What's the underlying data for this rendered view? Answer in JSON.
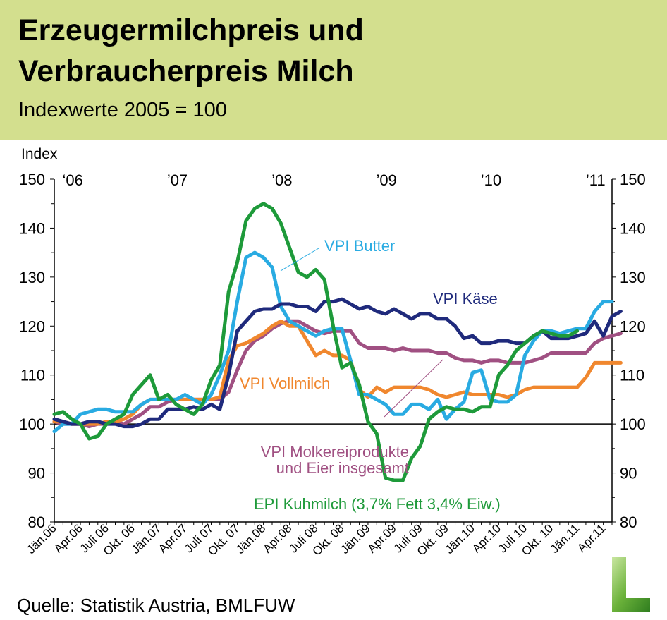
{
  "header": {
    "title_line1": "Erzeugermilchpreis und",
    "title_line2": "Verbraucherpreis Milch",
    "subtitle": "Indexwerte 2005 = 100"
  },
  "footer": {
    "source": "Quelle: Statistik Austria, BMLFUW"
  },
  "logo": {
    "icon": "letter-l-logo-icon",
    "color": "#5a9e2c"
  },
  "chart_data": {
    "type": "line",
    "ylabel": "Index",
    "ylim": [
      80,
      150
    ],
    "yticks": [
      80,
      90,
      100,
      110,
      120,
      130,
      140,
      150
    ],
    "reference_line": 100,
    "x_start": "2006-01",
    "x_end": "2011-05",
    "x_tick_labels": [
      "Jän.06",
      "Apr.06",
      "Juli 06",
      "Okt. 06",
      "Jän.07",
      "Apr.07",
      "Juli 07",
      "Okt. 07",
      "Jän.08",
      "Apr.08",
      "Juli 08",
      "Okt. 08",
      "Jän.09",
      "Apr.09",
      "Juli 09",
      "Okt. 09",
      "Jän.10",
      "Apr.10",
      "Juli 10",
      "Okt. 10",
      "Jän.11",
      "Apr.11"
    ],
    "year_labels": [
      "‘06",
      "’07",
      "’08",
      "’09",
      "’10",
      "’11"
    ],
    "grid": false,
    "series": [
      {
        "name": "VPI Butter",
        "color": "#29abe2",
        "values": [
          98.5,
          100,
          100,
          102,
          102.5,
          103,
          103,
          102.5,
          102.5,
          102.5,
          104,
          105,
          105,
          105,
          105,
          106,
          105,
          104,
          106,
          110,
          115,
          125,
          134,
          135,
          134,
          132,
          124,
          121,
          120,
          119,
          118,
          119,
          119.5,
          119.5,
          113,
          106,
          106,
          105,
          104,
          102,
          102,
          104,
          104,
          103,
          105,
          101,
          103,
          104.5,
          110.5,
          111,
          105,
          104.5,
          104.5,
          106,
          114,
          117,
          119,
          119,
          118.5,
          119,
          119.5,
          119.5,
          123,
          125,
          125
        ]
      },
      {
        "name": "VPI Käse",
        "color": "#1f2a7c",
        "values": [
          101,
          100.5,
          100,
          100,
          100.5,
          100.5,
          100,
          100,
          99.5,
          99.5,
          100,
          101,
          101,
          103,
          103,
          103,
          103.5,
          103,
          104,
          103,
          110,
          119,
          121,
          123,
          123.5,
          123.5,
          124.5,
          124.5,
          124,
          124,
          123,
          125,
          125,
          125.5,
          124.5,
          123.5,
          124,
          123,
          122.5,
          123.5,
          122.5,
          121.5,
          122.5,
          122.5,
          121.5,
          121.5,
          120,
          117.5,
          118,
          116.5,
          116.5,
          117,
          117,
          116.5,
          116.5,
          118,
          119,
          117.5,
          117.5,
          117.5,
          118,
          118.5,
          121,
          118,
          122,
          123
        ]
      },
      {
        "name": "VPI Molkereiprodukte und Eier insgesamt",
        "color": "#a05082",
        "values": [
          100.5,
          100,
          100,
          100,
          99.5,
          100,
          100,
          100.5,
          100,
          101,
          102,
          103.5,
          103.5,
          104.5,
          105,
          105,
          105,
          105,
          105,
          105,
          106.5,
          111,
          115,
          117,
          118,
          119.5,
          120.5,
          121,
          121,
          120,
          119,
          118.5,
          119,
          119,
          119,
          116.5,
          115.5,
          115.5,
          115.5,
          115,
          115.5,
          115,
          115,
          115,
          114.5,
          114.5,
          113.5,
          113,
          113,
          112.5,
          113,
          113,
          112.5,
          112.5,
          112.5,
          113,
          113.5,
          114.5,
          114.5,
          114.5,
          114.5,
          114.5,
          116.5,
          117.5,
          118,
          118.5
        ]
      },
      {
        "name": "VPI Vollmilch",
        "color": "#f0872e",
        "values": [
          100.5,
          100.5,
          100,
          100,
          100,
          100,
          100.5,
          100.5,
          101,
          102,
          104,
          105,
          105,
          105,
          105,
          105,
          105,
          105,
          105,
          105.5,
          113,
          116,
          116.5,
          117.5,
          118.5,
          120,
          121,
          120,
          120,
          117,
          114,
          115,
          114,
          114,
          113,
          107,
          105.5,
          107.5,
          106.5,
          107.5,
          107.5,
          107.5,
          107.5,
          107,
          106,
          105.5,
          106,
          106.5,
          106,
          106,
          106,
          106,
          105.5,
          106,
          107,
          107.5,
          107.5,
          107.5,
          107.5,
          107.5,
          107.5,
          109.5,
          112.5,
          112.5,
          112.5,
          112.5
        ]
      },
      {
        "name": "EPI Kuhmilch (3,7% Fett 3,4% Eiw.)",
        "color": "#1e9a3a",
        "values": [
          102,
          102.5,
          101,
          100,
          97,
          97.5,
          100,
          101,
          102,
          106,
          108,
          110,
          105,
          106,
          104,
          103,
          102,
          104,
          109,
          112,
          127,
          133,
          141.5,
          144,
          145,
          144,
          141,
          136,
          131,
          130,
          131.5,
          129.5,
          120,
          111.5,
          112.5,
          108,
          100.5,
          98,
          89,
          88.5,
          88.5,
          93,
          95.5,
          101,
          102.5,
          103.5,
          103,
          103,
          102.5,
          103.5,
          103.5,
          110,
          112,
          115,
          116.5,
          118,
          119,
          118.5,
          118,
          118,
          119
        ]
      }
    ],
    "annotations": [
      {
        "series": "VPI Butter",
        "text": "VPI Butter",
        "color": "#29abe2"
      },
      {
        "series": "VPI Käse",
        "text": "VPI Käse",
        "color": "#1f2a7c"
      },
      {
        "series": "VPI Vollmilch",
        "text": "VPI Vollmilch",
        "color": "#f0872e"
      },
      {
        "series": "VPI Molkereiprodukte und Eier insgesamt",
        "text_line1": "VPI Molkereiprodukte",
        "text_line2": "und Eier insgesamt",
        "color": "#a05082"
      },
      {
        "series": "EPI Kuhmilch (3,7% Fett 3,4% Eiw.)",
        "text": "EPI Kuhmilch (3,7% Fett 3,4% Eiw.)",
        "color": "#1e9a3a"
      }
    ]
  }
}
